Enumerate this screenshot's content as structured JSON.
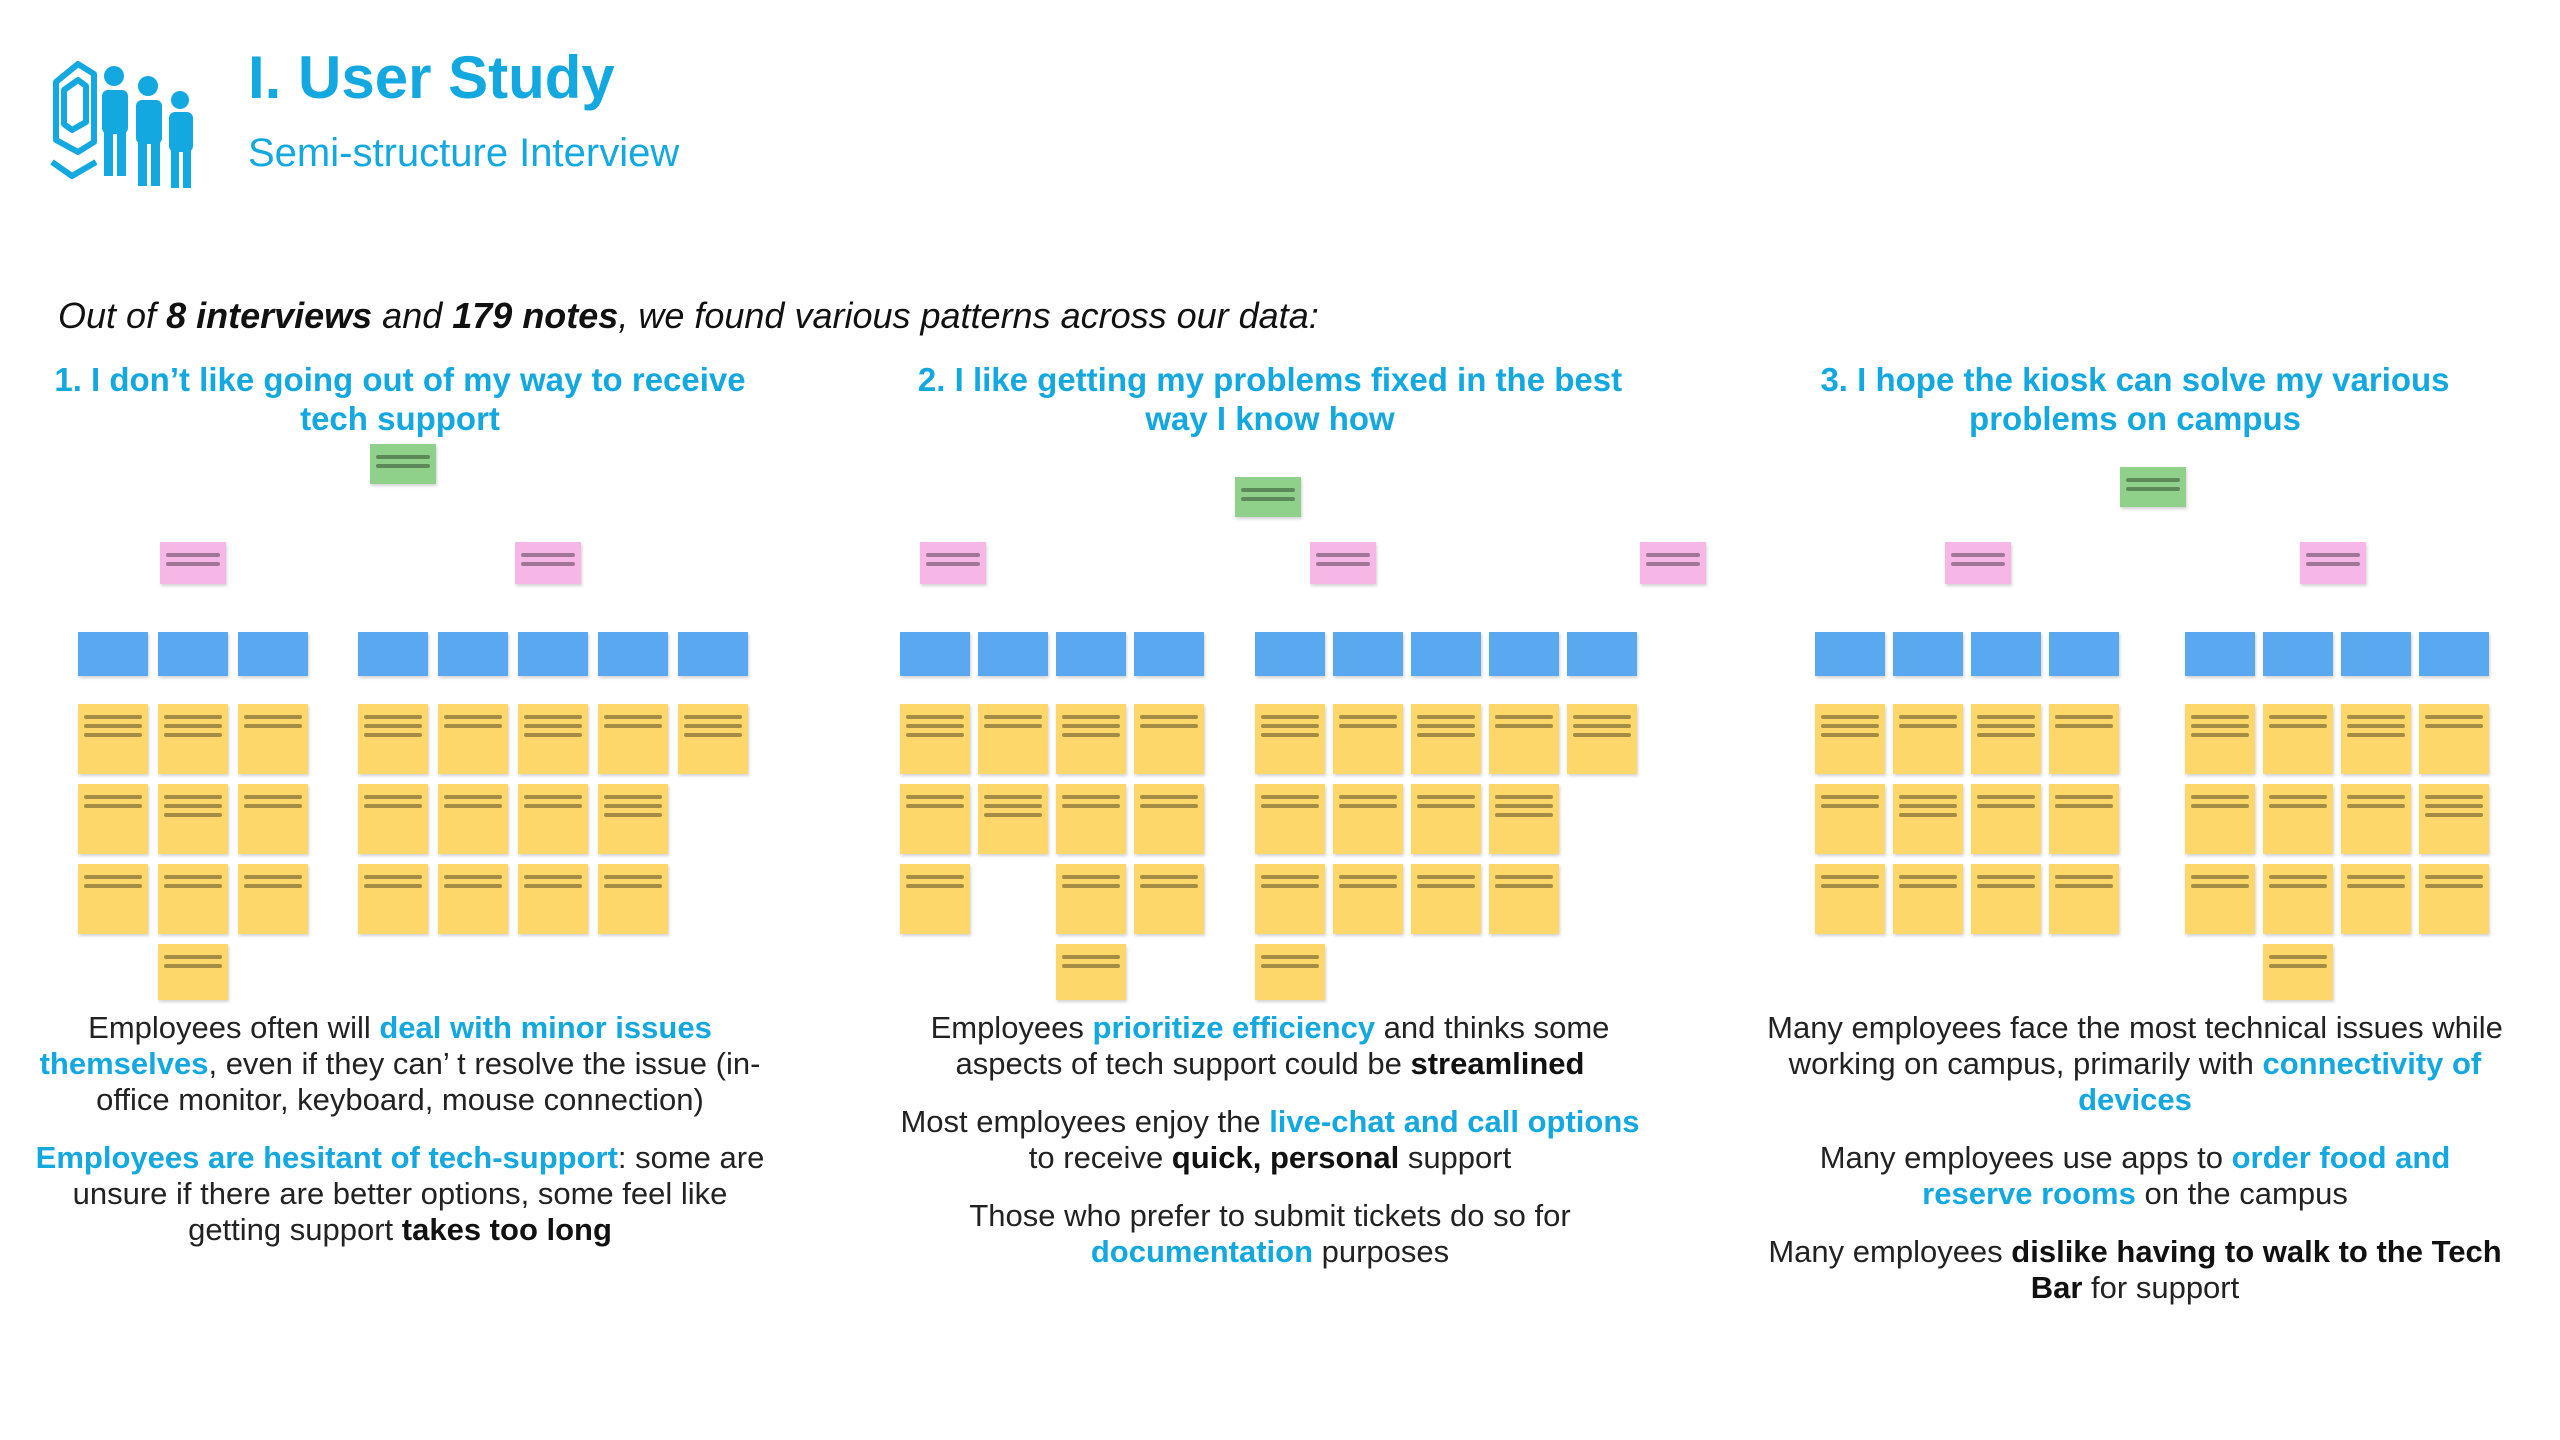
{
  "header": {
    "title": "I. User Study",
    "subtitle": "Semi-structure Interview"
  },
  "intro": {
    "prefix": "Out of ",
    "interviews": "8 interviews",
    "and": " and ",
    "notes": "179 notes",
    "suffix": ", we found various patterns across our data:"
  },
  "columns": [
    {
      "title": "1. I don’t like going out of my way to receive tech support",
      "findings": [
        {
          "a": "Employees often will ",
          "hl": "deal with minor issues themselves",
          "b": ", even if they can’  t resolve the issue (in-office monitor, keyboard, mouse connection)",
          "bold": "",
          "c": ""
        },
        {
          "a": "",
          "hl": "Employees are hesitant of tech-support",
          "b": ": some are unsure if there are better options, some feel like getting support ",
          "bold": "takes too long",
          "c": ""
        }
      ]
    },
    {
      "title": "2. I like getting my problems fixed in the best way I know how",
      "findings": [
        {
          "a": "Employees ",
          "hl": "prioritize efficiency",
          "b": " and thinks some aspects of tech support could be ",
          "bold": "streamlined",
          "c": ""
        },
        {
          "a": "Most employees enjoy the ",
          "hl": "live-chat and call options",
          "b": " to receive ",
          "bold": "quick, personal",
          "c": " support"
        },
        {
          "a": "Those who prefer to submit tickets do so for ",
          "hl": "documentation",
          "b": " purposes",
          "bold": "",
          "c": ""
        }
      ]
    },
    {
      "title": "3. I hope the kiosk can solve my various problems on campus",
      "findings": [
        {
          "a": "Many employees face the most technical issues while working on campus, primarily with ",
          "hl": "connectivity of devices",
          "b": "",
          "bold": "",
          "c": ""
        },
        {
          "a": "Many employees use apps to ",
          "hl": "order food and reserve rooms",
          "b": " on the campus",
          "bold": "",
          "c": ""
        },
        {
          "a": "Many employees ",
          "hl": "",
          "b": "",
          "bold": "dislike having to walk to the Tech Bar",
          "c": " for support"
        }
      ]
    }
  ],
  "colors": {
    "accent": "#13a8df",
    "sticky_yellow": "#fdd76a",
    "sticky_blue": "#5aa8f0",
    "sticky_pink": "#f6b6e6",
    "sticky_green": "#8fd18b"
  },
  "icons": {
    "logo": "kiosk-people-icon"
  }
}
